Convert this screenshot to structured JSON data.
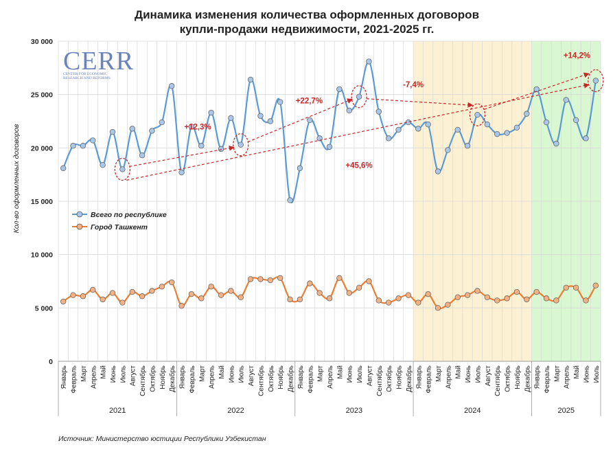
{
  "chart_data": {
    "type": "line",
    "title_line1": "Динамика изменения количества оформленных договоров",
    "title_line2": "купли-продажи недвижимости, 2021-2025 гг.",
    "ylabel": "Кол-во оформленных договоров",
    "ylim": [
      0,
      30000
    ],
    "yticks": [
      "0",
      "5 000",
      "10 000",
      "15 000",
      "20 000",
      "25 000",
      "30 000"
    ],
    "grid": true,
    "legend_position": "left-middle",
    "months": [
      "Январь",
      "Февраль",
      "Март",
      "Апрель",
      "Май",
      "Июнь",
      "Июль",
      "Август",
      "Сентябрь",
      "Октябрь",
      "Ноябрь",
      "Декабрь"
    ],
    "years": [
      {
        "label": "2021",
        "months": 12
      },
      {
        "label": "2022",
        "months": 12
      },
      {
        "label": "2023",
        "months": 12
      },
      {
        "label": "2024",
        "months": 12
      },
      {
        "label": "2025",
        "months": 7
      }
    ],
    "highlight_regions": [
      {
        "year": "2024",
        "color": "#fdf1d3"
      },
      {
        "year": "2025",
        "color": "#d9f7d0"
      }
    ],
    "series": [
      {
        "name": "Всего по республике",
        "color": "#5b9bd5",
        "values": [
          18100,
          20200,
          20200,
          20700,
          18400,
          21500,
          18000,
          21800,
          19300,
          21600,
          22400,
          25800,
          17700,
          22000,
          20200,
          23300,
          19900,
          22800,
          20300,
          26400,
          23000,
          22500,
          24300,
          15100,
          18100,
          22600,
          20900,
          20100,
          25500,
          23500,
          24800,
          28100,
          23400,
          20900,
          21700,
          22400,
          21800,
          22200,
          17800,
          19800,
          21700,
          20200,
          23100,
          22200,
          21300,
          21400,
          21900,
          23200,
          25500,
          22400,
          20400,
          24500,
          22600,
          20900,
          26300
        ]
      },
      {
        "name": "Город Ташкент",
        "color": "#ed7d31",
        "values": [
          5600,
          6200,
          6100,
          6700,
          5800,
          6400,
          5500,
          6500,
          6100,
          6600,
          7000,
          7400,
          5200,
          6300,
          5900,
          7000,
          6200,
          6600,
          6000,
          7700,
          7700,
          7600,
          7800,
          5800,
          5800,
          7300,
          6400,
          5900,
          7800,
          6400,
          6900,
          7500,
          5700,
          5500,
          5900,
          6200,
          5500,
          6300,
          5000,
          5300,
          6000,
          6200,
          6600,
          6000,
          5700,
          5900,
          6500,
          5800,
          6500,
          5900,
          5700,
          6900,
          6900,
          5700,
          7100
        ]
      }
    ],
    "annotations": [
      {
        "text": "+12,3%"
      },
      {
        "text": "+22,7%"
      },
      {
        "text": "-7,4%"
      },
      {
        "text": "+14,2%"
      },
      {
        "text": "+45,6%"
      }
    ]
  },
  "logo": {
    "main": "CERR",
    "sub_line1": "CENTER FOR ECONOMIC",
    "sub_line2": "RESEARCH AND REFORMS"
  },
  "source": "Источник: Министерство юстиции Республики Узбекистан",
  "colors": {
    "blue": "#5b9bd5",
    "orange": "#ed7d31",
    "annotation": "#c62828"
  }
}
